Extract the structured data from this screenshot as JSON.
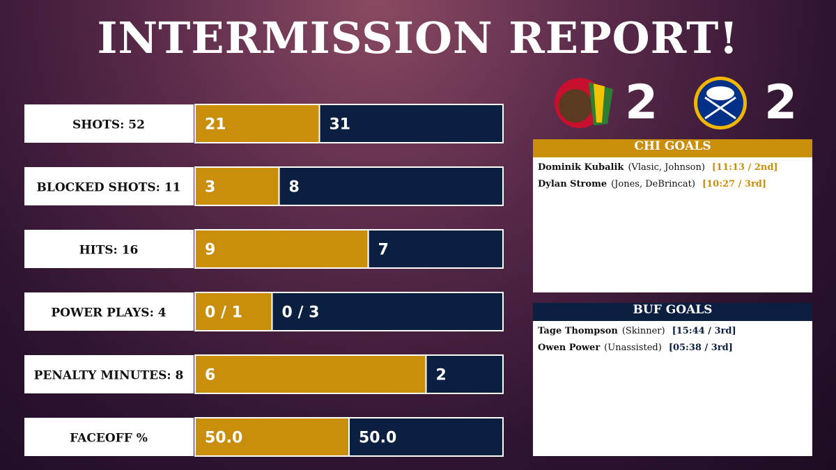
{
  "title": "INTERMISSION REPORT!",
  "score": {
    "chi": 2,
    "buf": 2
  },
  "stats": [
    {
      "label": "SHOTS: 52",
      "chi": 21,
      "buf": 31
    },
    {
      "label": "BLOCKED SHOTS: 11",
      "chi": 3,
      "buf": 8
    },
    {
      "label": "HITS: 16",
      "chi": 9,
      "buf": 7
    },
    {
      "label": "POWER PLAYS: 4",
      "chi": {
        "opportunities": 1,
        "label": "0 / 1"
      },
      "buf": {
        "opportunities": 3,
        "label": "0 / 3"
      }
    },
    {
      "label": "PENALTY MINUTES: 8",
      "chi": 6,
      "buf": 2
    },
    {
      "label": "FACEOFF %",
      "chi": {
        "value": 50,
        "label": "50.0"
      },
      "buf": {
        "value": 50,
        "label": "50.0"
      }
    }
  ],
  "chi_goals": {
    "header": "CHI GOALS",
    "goals": [
      {
        "scorer": "Dominik Kubalik",
        "assists": "(Vlasic, Johnson)",
        "time": "[11:13 / 2nd]"
      },
      {
        "scorer": "Dylan Strome",
        "assists": "(Jones, DeBrincat)",
        "time": "[10:27 / 3rd]"
      }
    ]
  },
  "buf_goals": {
    "header": "BUF GOALS",
    "goals": [
      {
        "scorer": "Tage Thompson",
        "assists": "(Skinner)",
        "time": "[15:44 / 3rd]"
      },
      {
        "scorer": "Owen Power",
        "assists": "(Unassisted)",
        "time": "[05:38 / 3rd]"
      }
    ]
  }
}
